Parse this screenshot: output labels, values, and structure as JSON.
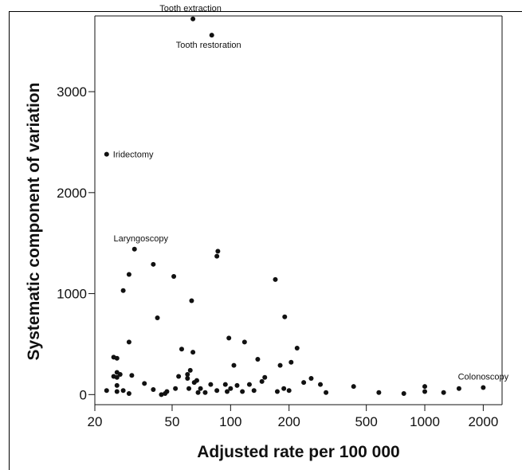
{
  "chart_data": {
    "type": "scatter",
    "xlabel": "Adjusted rate per 100 000",
    "ylabel": "Systematic component of variation",
    "x_scale": "log",
    "xlim": [
      20,
      2500
    ],
    "ylim": [
      -100,
      3750
    ],
    "x_ticks": [
      20,
      50,
      100,
      200,
      500,
      1000,
      2000
    ],
    "x_tick_labels": [
      "20",
      "50",
      "100",
      "200",
      "500",
      "1000",
      "2000"
    ],
    "y_ticks": [
      0,
      1000,
      2000,
      3000
    ],
    "y_tick_labels": [
      "0",
      "1000",
      "2000",
      "3000"
    ],
    "grid": false,
    "legend": "none",
    "annotations": [
      {
        "label": "Tooth extraction",
        "x": 64,
        "y": 3720
      },
      {
        "label": "Tooth restoration",
        "x": 80,
        "y": 3560
      },
      {
        "label": "Iridectomy",
        "x": 23,
        "y": 2380
      },
      {
        "label": "Laryngoscopy",
        "x": 32,
        "y": 1440
      },
      {
        "label": "Colonoscopy",
        "x": 2000,
        "y": 70
      }
    ],
    "points": [
      {
        "x": 64,
        "y": 3720
      },
      {
        "x": 80,
        "y": 3560
      },
      {
        "x": 23,
        "y": 2380
      },
      {
        "x": 32,
        "y": 1440
      },
      {
        "x": 86,
        "y": 1420
      },
      {
        "x": 85,
        "y": 1370
      },
      {
        "x": 40,
        "y": 1290
      },
      {
        "x": 30,
        "y": 1190
      },
      {
        "x": 51,
        "y": 1170
      },
      {
        "x": 170,
        "y": 1140
      },
      {
        "x": 28,
        "y": 1030
      },
      {
        "x": 63,
        "y": 930
      },
      {
        "x": 190,
        "y": 770
      },
      {
        "x": 42,
        "y": 760
      },
      {
        "x": 98,
        "y": 560
      },
      {
        "x": 118,
        "y": 520
      },
      {
        "x": 30,
        "y": 520
      },
      {
        "x": 220,
        "y": 460
      },
      {
        "x": 56,
        "y": 450
      },
      {
        "x": 64,
        "y": 420
      },
      {
        "x": 25,
        "y": 370
      },
      {
        "x": 26,
        "y": 360
      },
      {
        "x": 138,
        "y": 350
      },
      {
        "x": 205,
        "y": 320
      },
      {
        "x": 104,
        "y": 290
      },
      {
        "x": 180,
        "y": 290
      },
      {
        "x": 62,
        "y": 240
      },
      {
        "x": 26,
        "y": 220
      },
      {
        "x": 27,
        "y": 200
      },
      {
        "x": 60,
        "y": 200
      },
      {
        "x": 31,
        "y": 190
      },
      {
        "x": 25,
        "y": 180
      },
      {
        "x": 54,
        "y": 180
      },
      {
        "x": 26,
        "y": 170
      },
      {
        "x": 150,
        "y": 170
      },
      {
        "x": 60,
        "y": 160
      },
      {
        "x": 260,
        "y": 160
      },
      {
        "x": 67,
        "y": 140
      },
      {
        "x": 145,
        "y": 130
      },
      {
        "x": 65,
        "y": 120
      },
      {
        "x": 238,
        "y": 120
      },
      {
        "x": 36,
        "y": 110
      },
      {
        "x": 79,
        "y": 100
      },
      {
        "x": 94,
        "y": 100
      },
      {
        "x": 125,
        "y": 100
      },
      {
        "x": 290,
        "y": 100
      },
      {
        "x": 26,
        "y": 90
      },
      {
        "x": 108,
        "y": 90
      },
      {
        "x": 430,
        "y": 80
      },
      {
        "x": 1000,
        "y": 80
      },
      {
        "x": 2000,
        "y": 70
      },
      {
        "x": 1500,
        "y": 60
      },
      {
        "x": 61,
        "y": 60
      },
      {
        "x": 52,
        "y": 60
      },
      {
        "x": 70,
        "y": 60
      },
      {
        "x": 100,
        "y": 60
      },
      {
        "x": 188,
        "y": 60
      },
      {
        "x": 23,
        "y": 40
      },
      {
        "x": 28,
        "y": 40
      },
      {
        "x": 40,
        "y": 50
      },
      {
        "x": 85,
        "y": 40
      },
      {
        "x": 132,
        "y": 40
      },
      {
        "x": 200,
        "y": 40
      },
      {
        "x": 26,
        "y": 30
      },
      {
        "x": 47,
        "y": 30
      },
      {
        "x": 96,
        "y": 30
      },
      {
        "x": 115,
        "y": 30
      },
      {
        "x": 174,
        "y": 30
      },
      {
        "x": 1000,
        "y": 30
      },
      {
        "x": 68,
        "y": 20
      },
      {
        "x": 74,
        "y": 20
      },
      {
        "x": 310,
        "y": 20
      },
      {
        "x": 580,
        "y": 20
      },
      {
        "x": 1250,
        "y": 20
      },
      {
        "x": 30,
        "y": 10
      },
      {
        "x": 46,
        "y": 10
      },
      {
        "x": 780,
        "y": 10
      },
      {
        "x": 44,
        "y": 0
      }
    ]
  }
}
